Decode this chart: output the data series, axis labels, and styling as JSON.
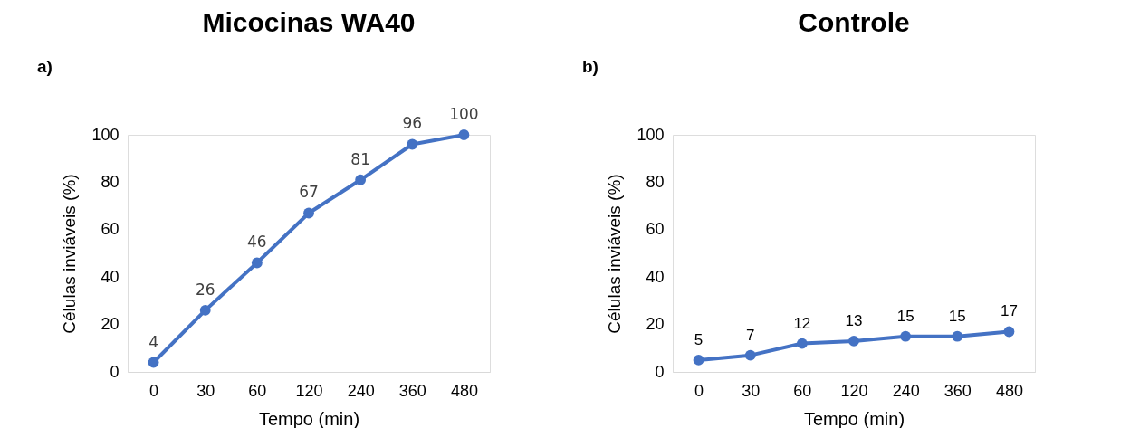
{
  "chart_data": [
    {
      "type": "line",
      "title": "Micocinas WA40",
      "xlabel": "Tempo (min)",
      "ylabel": "Células inviáveis (%)",
      "annotations": [
        "a)"
      ],
      "categories": [
        "0",
        "30",
        "60",
        "120",
        "240",
        "360",
        "480"
      ],
      "series": [
        {
          "color": "#4472c4",
          "values": [
            4,
            26,
            46,
            67,
            81,
            96,
            100
          ]
        }
      ],
      "ylim": [
        0,
        100
      ],
      "yticks": [
        0,
        20,
        40,
        60,
        80,
        100
      ],
      "data_labels": true,
      "marker": "circle",
      "grid": false
    },
    {
      "type": "line",
      "title": "Controle",
      "xlabel": "Tempo (min)",
      "ylabel": "Células inviáveis (%)",
      "annotations": [
        "b)"
      ],
      "categories": [
        "0",
        "30",
        "60",
        "120",
        "240",
        "360",
        "480"
      ],
      "series": [
        {
          "color": "#4472c4",
          "values": [
            5,
            7,
            12,
            13,
            15,
            15,
            17
          ]
        }
      ],
      "ylim": [
        0,
        100
      ],
      "yticks": [
        0,
        20,
        40,
        60,
        80,
        100
      ],
      "data_labels": true,
      "marker": "circle",
      "grid": false
    }
  ]
}
